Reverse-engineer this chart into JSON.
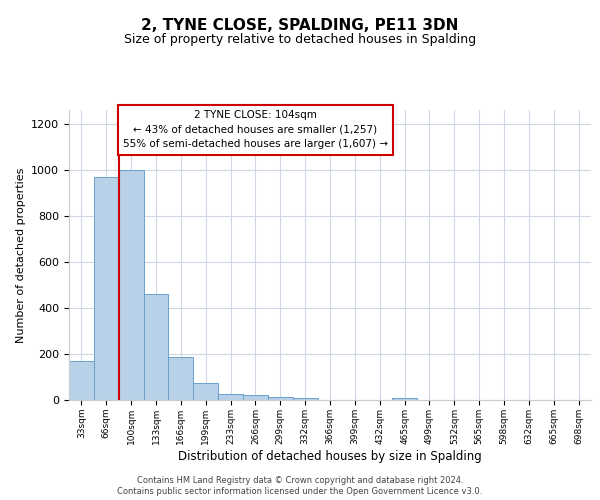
{
  "title": "2, TYNE CLOSE, SPALDING, PE11 3DN",
  "subtitle": "Size of property relative to detached houses in Spalding",
  "xlabel": "Distribution of detached houses by size in Spalding",
  "ylabel": "Number of detached properties",
  "bar_values": [
    170,
    970,
    1000,
    460,
    185,
    75,
    25,
    20,
    15,
    10,
    0,
    0,
    0,
    8,
    0,
    0,
    0,
    0,
    0,
    0,
    0
  ],
  "bar_labels": [
    "33sqm",
    "66sqm",
    "100sqm",
    "133sqm",
    "166sqm",
    "199sqm",
    "233sqm",
    "266sqm",
    "299sqm",
    "332sqm",
    "366sqm",
    "399sqm",
    "432sqm",
    "465sqm",
    "499sqm",
    "532sqm",
    "565sqm",
    "598sqm",
    "632sqm",
    "665sqm",
    "698sqm"
  ],
  "ylim": [
    0,
    1260
  ],
  "yticks": [
    0,
    200,
    400,
    600,
    800,
    1000,
    1200
  ],
  "bar_color": "#b8d0e8",
  "bar_edge_color": "#6aa0cc",
  "vline_index": 2,
  "annotation_title": "2 TYNE CLOSE: 104sqm",
  "annotation_line1": "← 43% of detached houses are smaller (1,257)",
  "annotation_line2": "55% of semi-detached houses are larger (1,607) →",
  "annotation_box_color": "#ffffff",
  "annotation_box_edge": "#cc0000",
  "vline_color": "#cc0000",
  "footer1": "Contains HM Land Registry data © Crown copyright and database right 2024.",
  "footer2": "Contains public sector information licensed under the Open Government Licence v3.0.",
  "bg_color": "#ffffff",
  "grid_color": "#d0d8e8"
}
